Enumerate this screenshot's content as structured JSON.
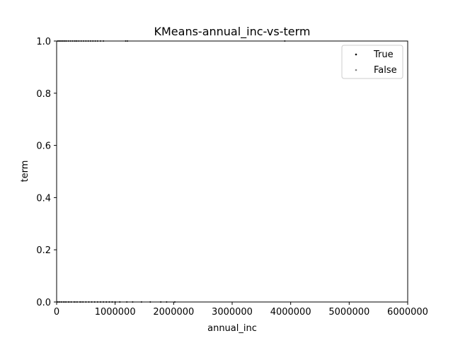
{
  "chart_data": {
    "type": "scatter",
    "title": "KMeans-annual_inc-vs-term",
    "xlabel": "annual_inc",
    "ylabel": "term",
    "xlim": [
      0,
      6000000
    ],
    "ylim": [
      0,
      1.0
    ],
    "xticks": [
      0,
      1000000,
      2000000,
      3000000,
      4000000,
      5000000,
      6000000
    ],
    "xtick_labels": [
      "0",
      "1000000",
      "2000000",
      "3000000",
      "4000000",
      "5000000",
      "6000000"
    ],
    "yticks": [
      0.0,
      0.2,
      0.4,
      0.6,
      0.8,
      1.0
    ],
    "ytick_labels": [
      "0.0",
      "0.2",
      "0.4",
      "0.6",
      "0.8",
      "1.0"
    ],
    "grid": false,
    "legend_position": "top-right",
    "series": [
      {
        "name": "True",
        "color": "#000000",
        "points": [
          [
            20000,
            1
          ],
          [
            45000,
            1
          ],
          [
            70000,
            1
          ],
          [
            95000,
            1
          ],
          [
            130000,
            1
          ],
          [
            165000,
            1
          ],
          [
            200000,
            1
          ],
          [
            240000,
            1
          ],
          [
            275000,
            1
          ],
          [
            310000,
            1
          ],
          [
            345000,
            1
          ],
          [
            380000,
            1
          ],
          [
            420000,
            1
          ],
          [
            460000,
            1
          ],
          [
            500000,
            1
          ],
          [
            540000,
            1
          ],
          [
            580000,
            1
          ],
          [
            620000,
            1
          ],
          [
            660000,
            1
          ],
          [
            700000,
            1
          ],
          [
            750000,
            1
          ],
          [
            800000,
            1
          ],
          [
            1180000,
            1
          ],
          [
            1210000,
            1
          ],
          [
            3900000,
            1
          ],
          [
            20000,
            0
          ],
          [
            50000,
            0
          ],
          [
            80000,
            0
          ],
          [
            120000,
            0
          ],
          [
            160000,
            0
          ],
          [
            200000,
            0
          ],
          [
            250000,
            0
          ],
          [
            300000,
            0
          ],
          [
            350000,
            0
          ],
          [
            400000,
            0
          ],
          [
            450000,
            0
          ],
          [
            500000,
            0
          ],
          [
            550000,
            0
          ],
          [
            600000,
            0
          ],
          [
            650000,
            0
          ],
          [
            700000,
            0
          ],
          [
            750000,
            0
          ],
          [
            800000,
            0
          ],
          [
            850000,
            0
          ],
          [
            900000,
            0
          ],
          [
            950000,
            0
          ],
          [
            1000000,
            0
          ],
          [
            1080000,
            0
          ],
          [
            1200000,
            0
          ],
          [
            1300000,
            0
          ],
          [
            1450000,
            0
          ],
          [
            1600000,
            0
          ],
          [
            1780000,
            0
          ],
          [
            1880000,
            0
          ],
          [
            2020000,
            0
          ]
        ]
      },
      {
        "name": "False",
        "color": "#808080",
        "points": [
          [
            30000,
            1
          ],
          [
            60000,
            1
          ],
          [
            110000,
            1
          ],
          [
            150000,
            1
          ],
          [
            230000,
            1
          ],
          [
            330000,
            1
          ],
          [
            40000,
            0
          ],
          [
            90000,
            0
          ],
          [
            140000,
            0
          ],
          [
            220000,
            0
          ],
          [
            320000,
            0
          ],
          [
            420000,
            0
          ]
        ]
      }
    ]
  }
}
